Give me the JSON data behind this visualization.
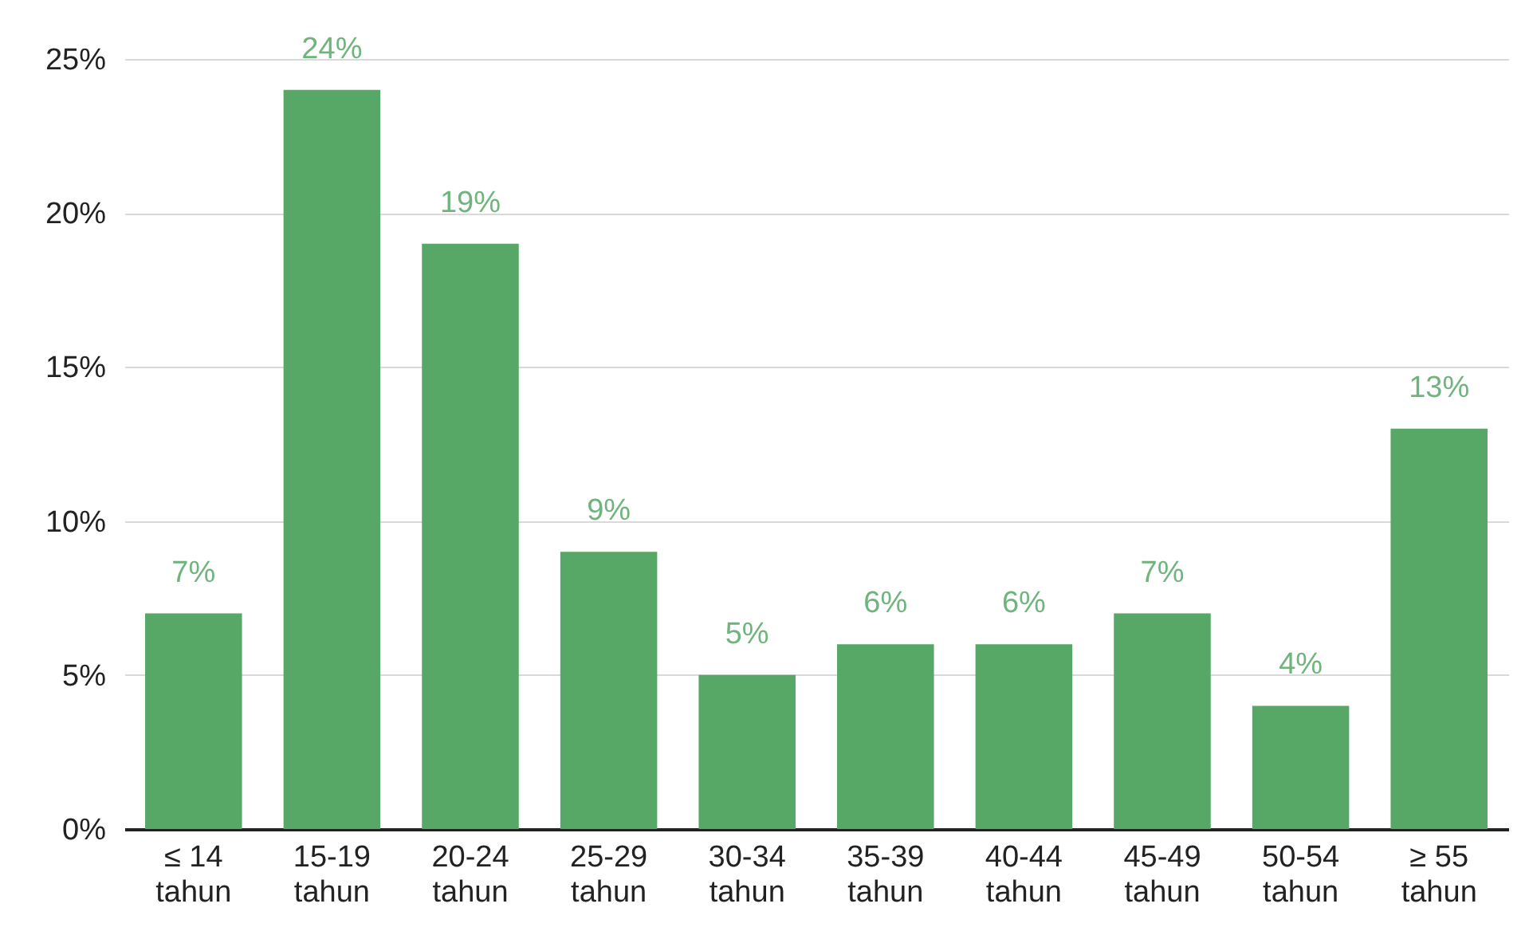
{
  "chart_data": {
    "type": "bar",
    "categories": [
      "≤ 14 tahun",
      "15-19 tahun",
      "20-24 tahun",
      "25-29 tahun",
      "30-34 tahun",
      "35-39 tahun",
      "40-44 tahun",
      "45-49 tahun",
      "50-54 tahun",
      "≥ 55 tahun"
    ],
    "values": [
      7,
      24,
      19,
      9,
      5,
      6,
      6,
      7,
      4,
      13
    ],
    "value_labels": [
      "7%",
      "24%",
      "19%",
      "9%",
      "5%",
      "6%",
      "6%",
      "7%",
      "4%",
      "13%"
    ],
    "color": "#57a866",
    "ylim": [
      0,
      25
    ],
    "yticks": [
      {
        "value": 0,
        "label": "0%"
      },
      {
        "value": 5,
        "label": "5%"
      },
      {
        "value": 10,
        "label": "10%"
      },
      {
        "value": 15,
        "label": "15%"
      },
      {
        "value": 20,
        "label": "20%"
      },
      {
        "value": 25,
        "label": "25%"
      }
    ],
    "grid": "y"
  }
}
